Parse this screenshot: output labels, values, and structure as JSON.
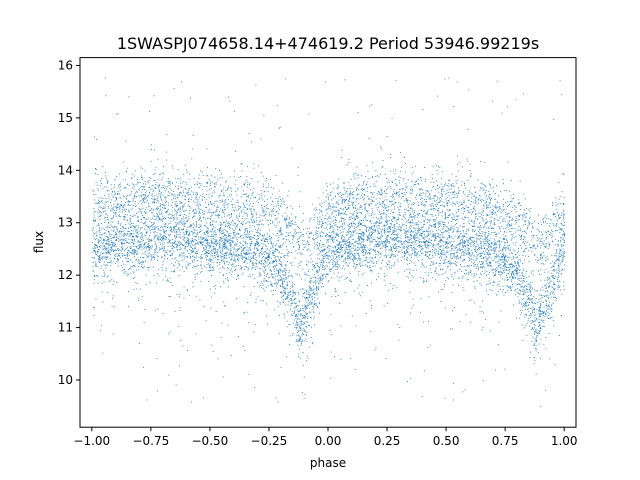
{
  "chart_data": {
    "type": "scatter",
    "title": "1SWASPJ074658.14+474619.2 Period 53946.99219s",
    "xlabel": "phase",
    "ylabel": "flux",
    "xlim": [
      -1.05,
      1.05
    ],
    "ylim": [
      9.1,
      16.15
    ],
    "x_ticks": [
      -1.0,
      -0.75,
      -0.5,
      -0.25,
      0.0,
      0.25,
      0.5,
      0.75,
      1.0
    ],
    "x_tick_labels": [
      "−1.00",
      "−0.75",
      "−0.50",
      "−0.25",
      "0.00",
      "0.25",
      "0.50",
      "0.75",
      "1.00"
    ],
    "y_ticks": [
      10,
      11,
      12,
      13,
      14,
      15,
      16
    ],
    "y_tick_labels": [
      "10",
      "11",
      "12",
      "13",
      "14",
      "15",
      "16"
    ],
    "grid": false,
    "marker_color": "#1f77b4",
    "series": [
      {
        "values_description_points": [
          [
            -1.0,
            12.5
          ],
          [
            -0.9,
            12.6
          ],
          [
            -0.8,
            12.65
          ],
          [
            -0.7,
            12.7
          ],
          [
            -0.6,
            12.65
          ],
          [
            -0.5,
            12.55
          ],
          [
            -0.4,
            12.5
          ],
          [
            -0.3,
            12.45
          ],
          [
            -0.2,
            12.1
          ],
          [
            -0.15,
            11.5
          ],
          [
            -0.12,
            11.0
          ],
          [
            -0.08,
            11.5
          ],
          [
            -0.02,
            12.3
          ],
          [
            0.0,
            12.5
          ],
          [
            0.1,
            12.6
          ],
          [
            0.2,
            12.65
          ],
          [
            0.3,
            12.7
          ],
          [
            0.4,
            12.65
          ],
          [
            0.5,
            12.55
          ],
          [
            0.6,
            12.5
          ],
          [
            0.7,
            12.45
          ],
          [
            0.8,
            12.1
          ],
          [
            0.85,
            11.5
          ],
          [
            0.88,
            11.0
          ],
          [
            0.92,
            11.5
          ],
          [
            0.98,
            12.3
          ],
          [
            1.0,
            12.5
          ]
        ],
        "upper_band_points": [
          [
            -1.0,
            13.3
          ],
          [
            -0.9,
            13.4
          ],
          [
            -0.8,
            13.45
          ],
          [
            -0.7,
            13.5
          ],
          [
            -0.6,
            13.45
          ],
          [
            -0.5,
            13.4
          ],
          [
            -0.4,
            13.35
          ],
          [
            -0.3,
            13.3
          ],
          [
            -0.2,
            13.1
          ],
          [
            -0.1,
            12.5
          ],
          [
            0.0,
            13.2
          ],
          [
            0.1,
            13.4
          ],
          [
            0.2,
            13.45
          ],
          [
            0.3,
            13.5
          ],
          [
            0.4,
            13.45
          ],
          [
            0.5,
            13.4
          ],
          [
            0.6,
            13.35
          ],
          [
            0.7,
            13.3
          ],
          [
            0.8,
            13.1
          ],
          [
            0.9,
            12.5
          ],
          [
            1.0,
            13.2
          ]
        ]
      }
    ]
  }
}
